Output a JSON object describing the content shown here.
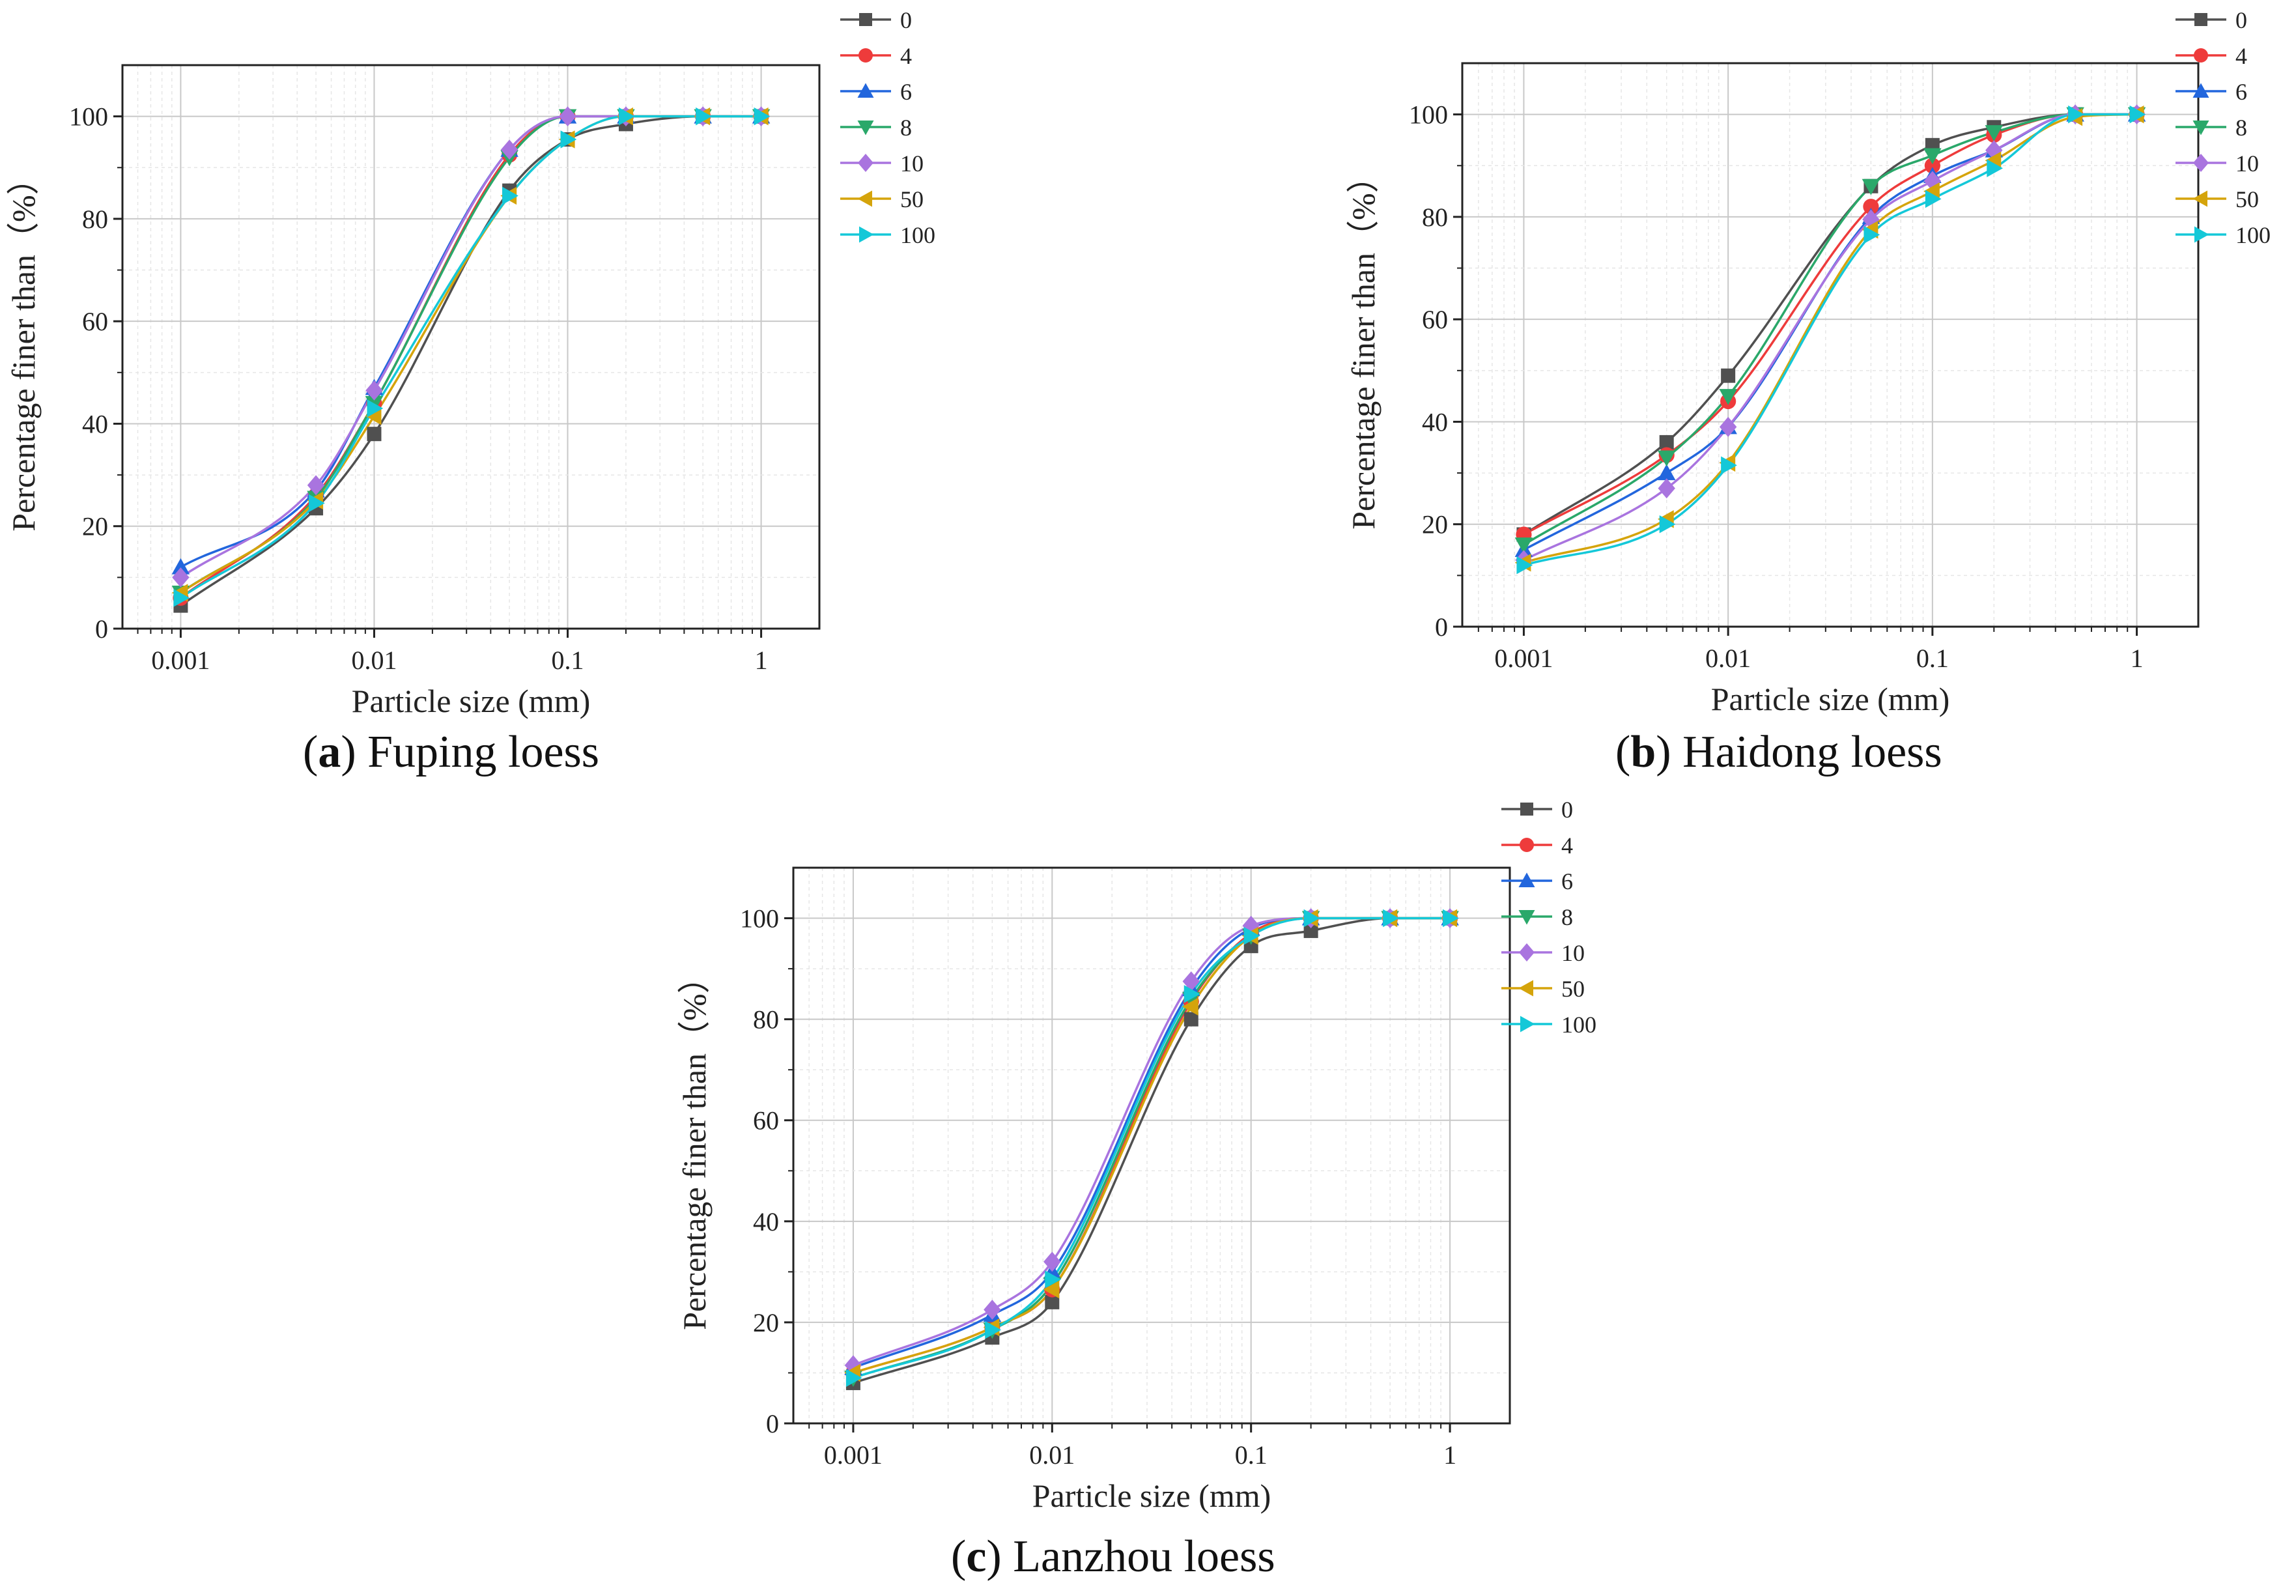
{
  "chart_data": [
    {
      "type": "line",
      "panel_id": "a",
      "caption_letter": "a",
      "caption_text": "Fuping loess",
      "xlabel": "Particle size (mm)",
      "ylabel": "Percentage finer than（%）",
      "xscale": "log",
      "xlim": [
        0.0005,
        2
      ],
      "ylim": [
        0,
        110
      ],
      "xticks": [
        0.001,
        0.01,
        0.1,
        1
      ],
      "xtick_labels": [
        "0.001",
        "0.01",
        "0.1",
        "1"
      ],
      "yticks": [
        0,
        20,
        40,
        60,
        80,
        100
      ],
      "ytick_labels": [
        "0",
        "20",
        "40",
        "60",
        "80",
        "100"
      ],
      "grid": true,
      "legend_position": "outside-top-right",
      "x": [
        0.001,
        0.005,
        0.01,
        0.05,
        0.1,
        0.2,
        0.5,
        1
      ],
      "series": [
        {
          "name": "0",
          "values": [
            4.5,
            23.5,
            38,
            85.5,
            95.5,
            98.5,
            100,
            100
          ]
        },
        {
          "name": "4",
          "values": [
            6,
            26,
            44,
            92.5,
            100,
            100,
            100,
            100
          ]
        },
        {
          "name": "6",
          "values": [
            12,
            27,
            47,
            93.5,
            100,
            100,
            100,
            100
          ]
        },
        {
          "name": "8",
          "values": [
            7,
            25.5,
            44,
            92,
            100,
            100,
            100,
            100
          ]
        },
        {
          "name": "10",
          "values": [
            10,
            28,
            46.5,
            93.5,
            100,
            100,
            100,
            100
          ]
        },
        {
          "name": "50",
          "values": [
            7,
            25,
            41.5,
            84.5,
            95.5,
            100,
            100,
            100
          ]
        },
        {
          "name": "100",
          "values": [
            6,
            24.5,
            43,
            84.5,
            95.5,
            100,
            100,
            100
          ]
        }
      ]
    },
    {
      "type": "line",
      "panel_id": "b",
      "caption_letter": "b",
      "caption_text": "Haidong loess",
      "xlabel": "Particle size (mm)",
      "ylabel": "Percentage finer than（%）",
      "xscale": "log",
      "xlim": [
        0.0005,
        2
      ],
      "ylim": [
        0,
        110
      ],
      "xticks": [
        0.001,
        0.01,
        0.1,
        1
      ],
      "xtick_labels": [
        "0.001",
        "0.01",
        "0.1",
        "1"
      ],
      "yticks": [
        0,
        20,
        40,
        60,
        80,
        100
      ],
      "ytick_labels": [
        "0",
        "20",
        "40",
        "60",
        "80",
        "100"
      ],
      "grid": true,
      "legend_position": "outside-top-right",
      "x": [
        0.001,
        0.005,
        0.01,
        0.05,
        0.1,
        0.2,
        0.5,
        1
      ],
      "series": [
        {
          "name": "0",
          "values": [
            18,
            36,
            49,
            86,
            94,
            97.5,
            100,
            100
          ]
        },
        {
          "name": "4",
          "values": [
            18,
            33.5,
            44,
            82,
            90,
            96,
            100,
            100
          ]
        },
        {
          "name": "6",
          "values": [
            15,
            30,
            39,
            80,
            88,
            93,
            100,
            100
          ]
        },
        {
          "name": "8",
          "values": [
            16,
            33,
            45,
            86,
            92,
            96.5,
            100,
            100
          ]
        },
        {
          "name": "10",
          "values": [
            13,
            27,
            39,
            79.5,
            87,
            93,
            100,
            100
          ]
        },
        {
          "name": "50",
          "values": [
            12.5,
            21,
            32,
            77.5,
            85,
            91,
            99.5,
            100
          ]
        },
        {
          "name": "100",
          "values": [
            12,
            20,
            31.5,
            76.5,
            83.5,
            89.5,
            100,
            100
          ]
        }
      ]
    },
    {
      "type": "line",
      "panel_id": "c",
      "caption_letter": "c",
      "caption_text": "Lanzhou loess",
      "xlabel": "Particle size (mm)",
      "ylabel": "Percentage finer than（%）",
      "xscale": "log",
      "xlim": [
        0.0005,
        2
      ],
      "ylim": [
        0,
        110
      ],
      "xticks": [
        0.001,
        0.01,
        0.1,
        1
      ],
      "xtick_labels": [
        "0.001",
        "0.01",
        "0.1",
        "1"
      ],
      "yticks": [
        0,
        20,
        40,
        60,
        80,
        100
      ],
      "ytick_labels": [
        "0",
        "20",
        "40",
        "60",
        "80",
        "100"
      ],
      "grid": true,
      "legend_position": "outside-top-right",
      "x": [
        0.001,
        0.005,
        0.01,
        0.05,
        0.1,
        0.2,
        0.5,
        1
      ],
      "series": [
        {
          "name": "0",
          "values": [
            8,
            17,
            24,
            80,
            94.5,
            97.5,
            100,
            100
          ]
        },
        {
          "name": "4",
          "values": [
            10,
            19,
            26.5,
            83.5,
            97,
            100,
            100,
            100
          ]
        },
        {
          "name": "6",
          "values": [
            11,
            21.5,
            30,
            86,
            98,
            100,
            100,
            100
          ]
        },
        {
          "name": "8",
          "values": [
            9,
            18.5,
            27.5,
            84,
            96.5,
            100,
            100,
            100
          ]
        },
        {
          "name": "10",
          "values": [
            11.5,
            22.5,
            32,
            87.5,
            98.5,
            100,
            100,
            100
          ]
        },
        {
          "name": "50",
          "values": [
            10,
            19,
            26.5,
            82.5,
            96.5,
            100,
            100,
            100
          ]
        },
        {
          "name": "100",
          "values": [
            9,
            18.5,
            28.5,
            85,
            96.5,
            100,
            100,
            100
          ]
        }
      ]
    }
  ],
  "series_styles": [
    {
      "name": "0",
      "color": "#505050",
      "marker": "square"
    },
    {
      "name": "4",
      "color": "#ee3b3b",
      "marker": "circle"
    },
    {
      "name": "6",
      "color": "#2266dd",
      "marker": "triangle-up"
    },
    {
      "name": "8",
      "color": "#2aa86a",
      "marker": "triangle-down"
    },
    {
      "name": "10",
      "color": "#a974df",
      "marker": "diamond"
    },
    {
      "name": "50",
      "color": "#d5a40b",
      "marker": "triangle-left"
    },
    {
      "name": "100",
      "color": "#14c8d8",
      "marker": "triangle-right"
    }
  ]
}
